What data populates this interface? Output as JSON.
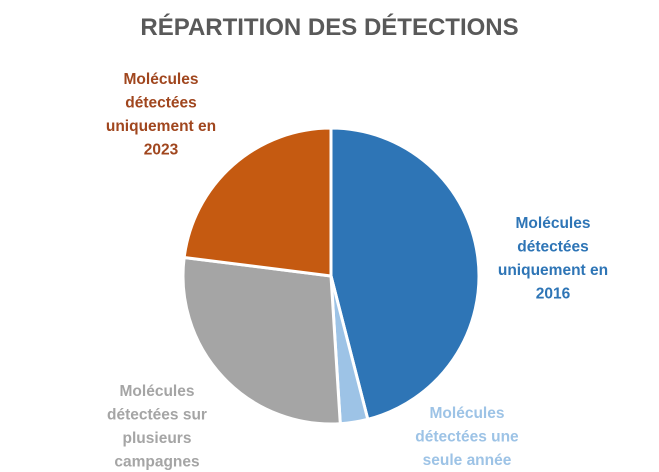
{
  "chart_data": {
    "type": "pie",
    "title": "RÉPARTITION DES DÉTECTIONS",
    "legend": "none",
    "slices": [
      {
        "label": "Molécules détectées uniquement en 2016",
        "label_lines": [
          "Molécules",
          "détectées",
          "uniquement en",
          "2016"
        ],
        "value": 46,
        "color": "#2E75B6",
        "label_color": "#2E75B6"
      },
      {
        "label": "Molécules détectées une seule année",
        "label_lines": [
          "Molécules",
          "détectées une",
          "seule année"
        ],
        "value": 3,
        "color": "#9DC3E6",
        "label_color": "#9DC3E6"
      },
      {
        "label": "Molécules détectées sur plusieurs campagnes",
        "label_lines": [
          "Molécules",
          "détectées sur",
          "plusieurs",
          "campagnes"
        ],
        "value": 28,
        "color": "#A5A5A5",
        "label_color": "#A5A5A5"
      },
      {
        "label": "Molécules détectées uniquement en 2023",
        "label_lines": [
          "Molécules",
          "détectées",
          "uniquement en",
          "2023"
        ],
        "value": 23,
        "color": "#C55A11",
        "label_color": "#A0461E"
      }
    ]
  }
}
